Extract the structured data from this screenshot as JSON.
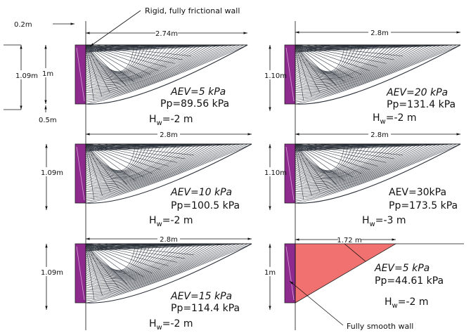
{
  "annotations": {
    "top_label": "Rigid, fully frictional wall",
    "bottom_label": "Fully smooth wall"
  },
  "panels": [
    {
      "dimensions": {
        "wall_width": "0.2m",
        "length": "2.74m",
        "height": "1.09m",
        "depth": "1m",
        "base": "0.5m"
      },
      "aev": "AEV=5 kPa",
      "pp": "Pp=89.56 kPa",
      "hw": {
        "symbol": "H",
        "subscript": "w",
        "value": "=-2 m"
      }
    },
    {
      "dimensions": {
        "length": "2.8m",
        "height": "1.10m"
      },
      "aev": "AEV=20 kPa",
      "pp": "Pp=131.4 kPa",
      "hw": {
        "symbol": "H",
        "subscript": "w",
        "value": "=-2 m"
      }
    },
    {
      "dimensions": {
        "length": "2.8m",
        "height": "1.09m"
      },
      "aev": "AEV=10 kPa",
      "pp": "Pp=100.5 kPa",
      "hw": {
        "symbol": "H",
        "subscript": "w",
        "value": "=-2 m"
      }
    },
    {
      "dimensions": {
        "length": "2.8m",
        "height": "1.10m"
      },
      "aev": "AEV=30kPa",
      "pp": "Pp=173.5 kPa",
      "hw": {
        "symbol": "H",
        "subscript": "w",
        "value": "=-3 m"
      }
    },
    {
      "dimensions": {
        "length": "2.8m",
        "height": "1.09m"
      },
      "aev": "AEV=15 kPa",
      "pp": "Pp=114.4 kPa",
      "hw": {
        "symbol": "H",
        "subscript": "w",
        "value": "=-2 m"
      }
    },
    {
      "dimensions": {
        "length": "1.72 m",
        "height": "1m"
      },
      "aev": "AEV=5 kPa",
      "pp": "Pp=44.61 kPa",
      "hw": {
        "symbol": "H",
        "subscript": "w",
        "value": "=-2 m"
      }
    }
  ]
}
